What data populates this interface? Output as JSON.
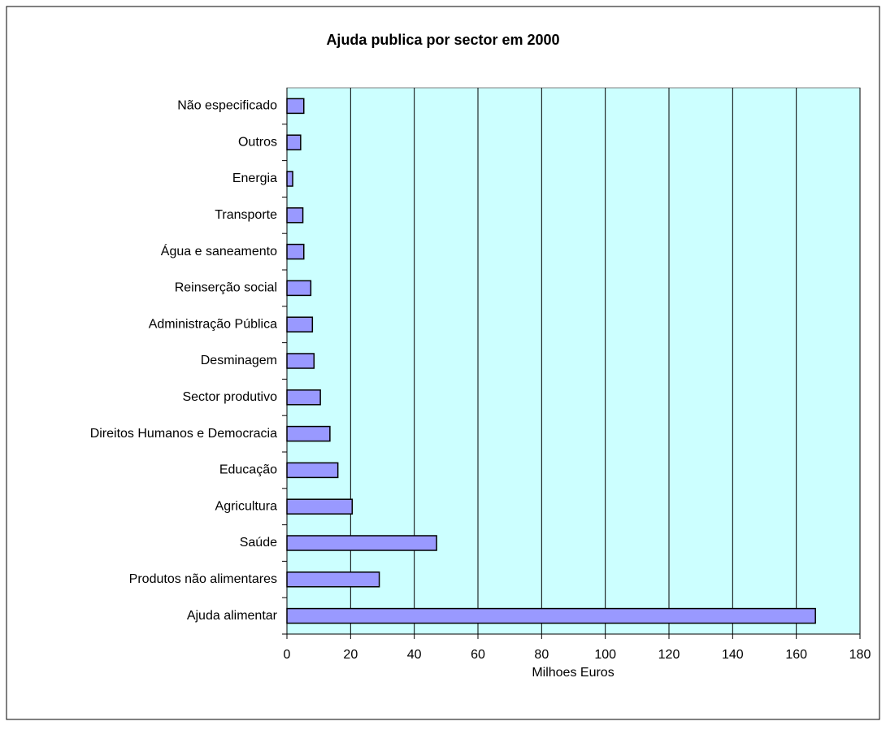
{
  "chart_data": {
    "type": "bar",
    "orientation": "horizontal",
    "title": "Ajuda publica por sector em 2000",
    "x_label": "Milhoes Euros",
    "categories": [
      "Ajuda alimentar",
      "Produtos não alimentares",
      "Saúde",
      "Agricultura",
      "Educação",
      "Direitos Humanos e Democracia",
      "Sector produtivo",
      "Desminagem",
      "Administração Pública",
      "Reinserção social",
      "Água e saneamento",
      "Transporte",
      "Energia",
      "Outros",
      "Não especificado"
    ],
    "values": [
      166,
      29,
      47,
      20.5,
      16,
      13.5,
      10.5,
      8.5,
      8,
      7.5,
      5.3,
      5,
      1.8,
      4.3,
      5.3
    ],
    "color": "#9999ff",
    "plot_background": "#ccffff",
    "xlim": [
      0,
      180
    ],
    "xticks": [
      0,
      20,
      40,
      60,
      80,
      100,
      120,
      140,
      160,
      180
    ],
    "grid": true
  }
}
